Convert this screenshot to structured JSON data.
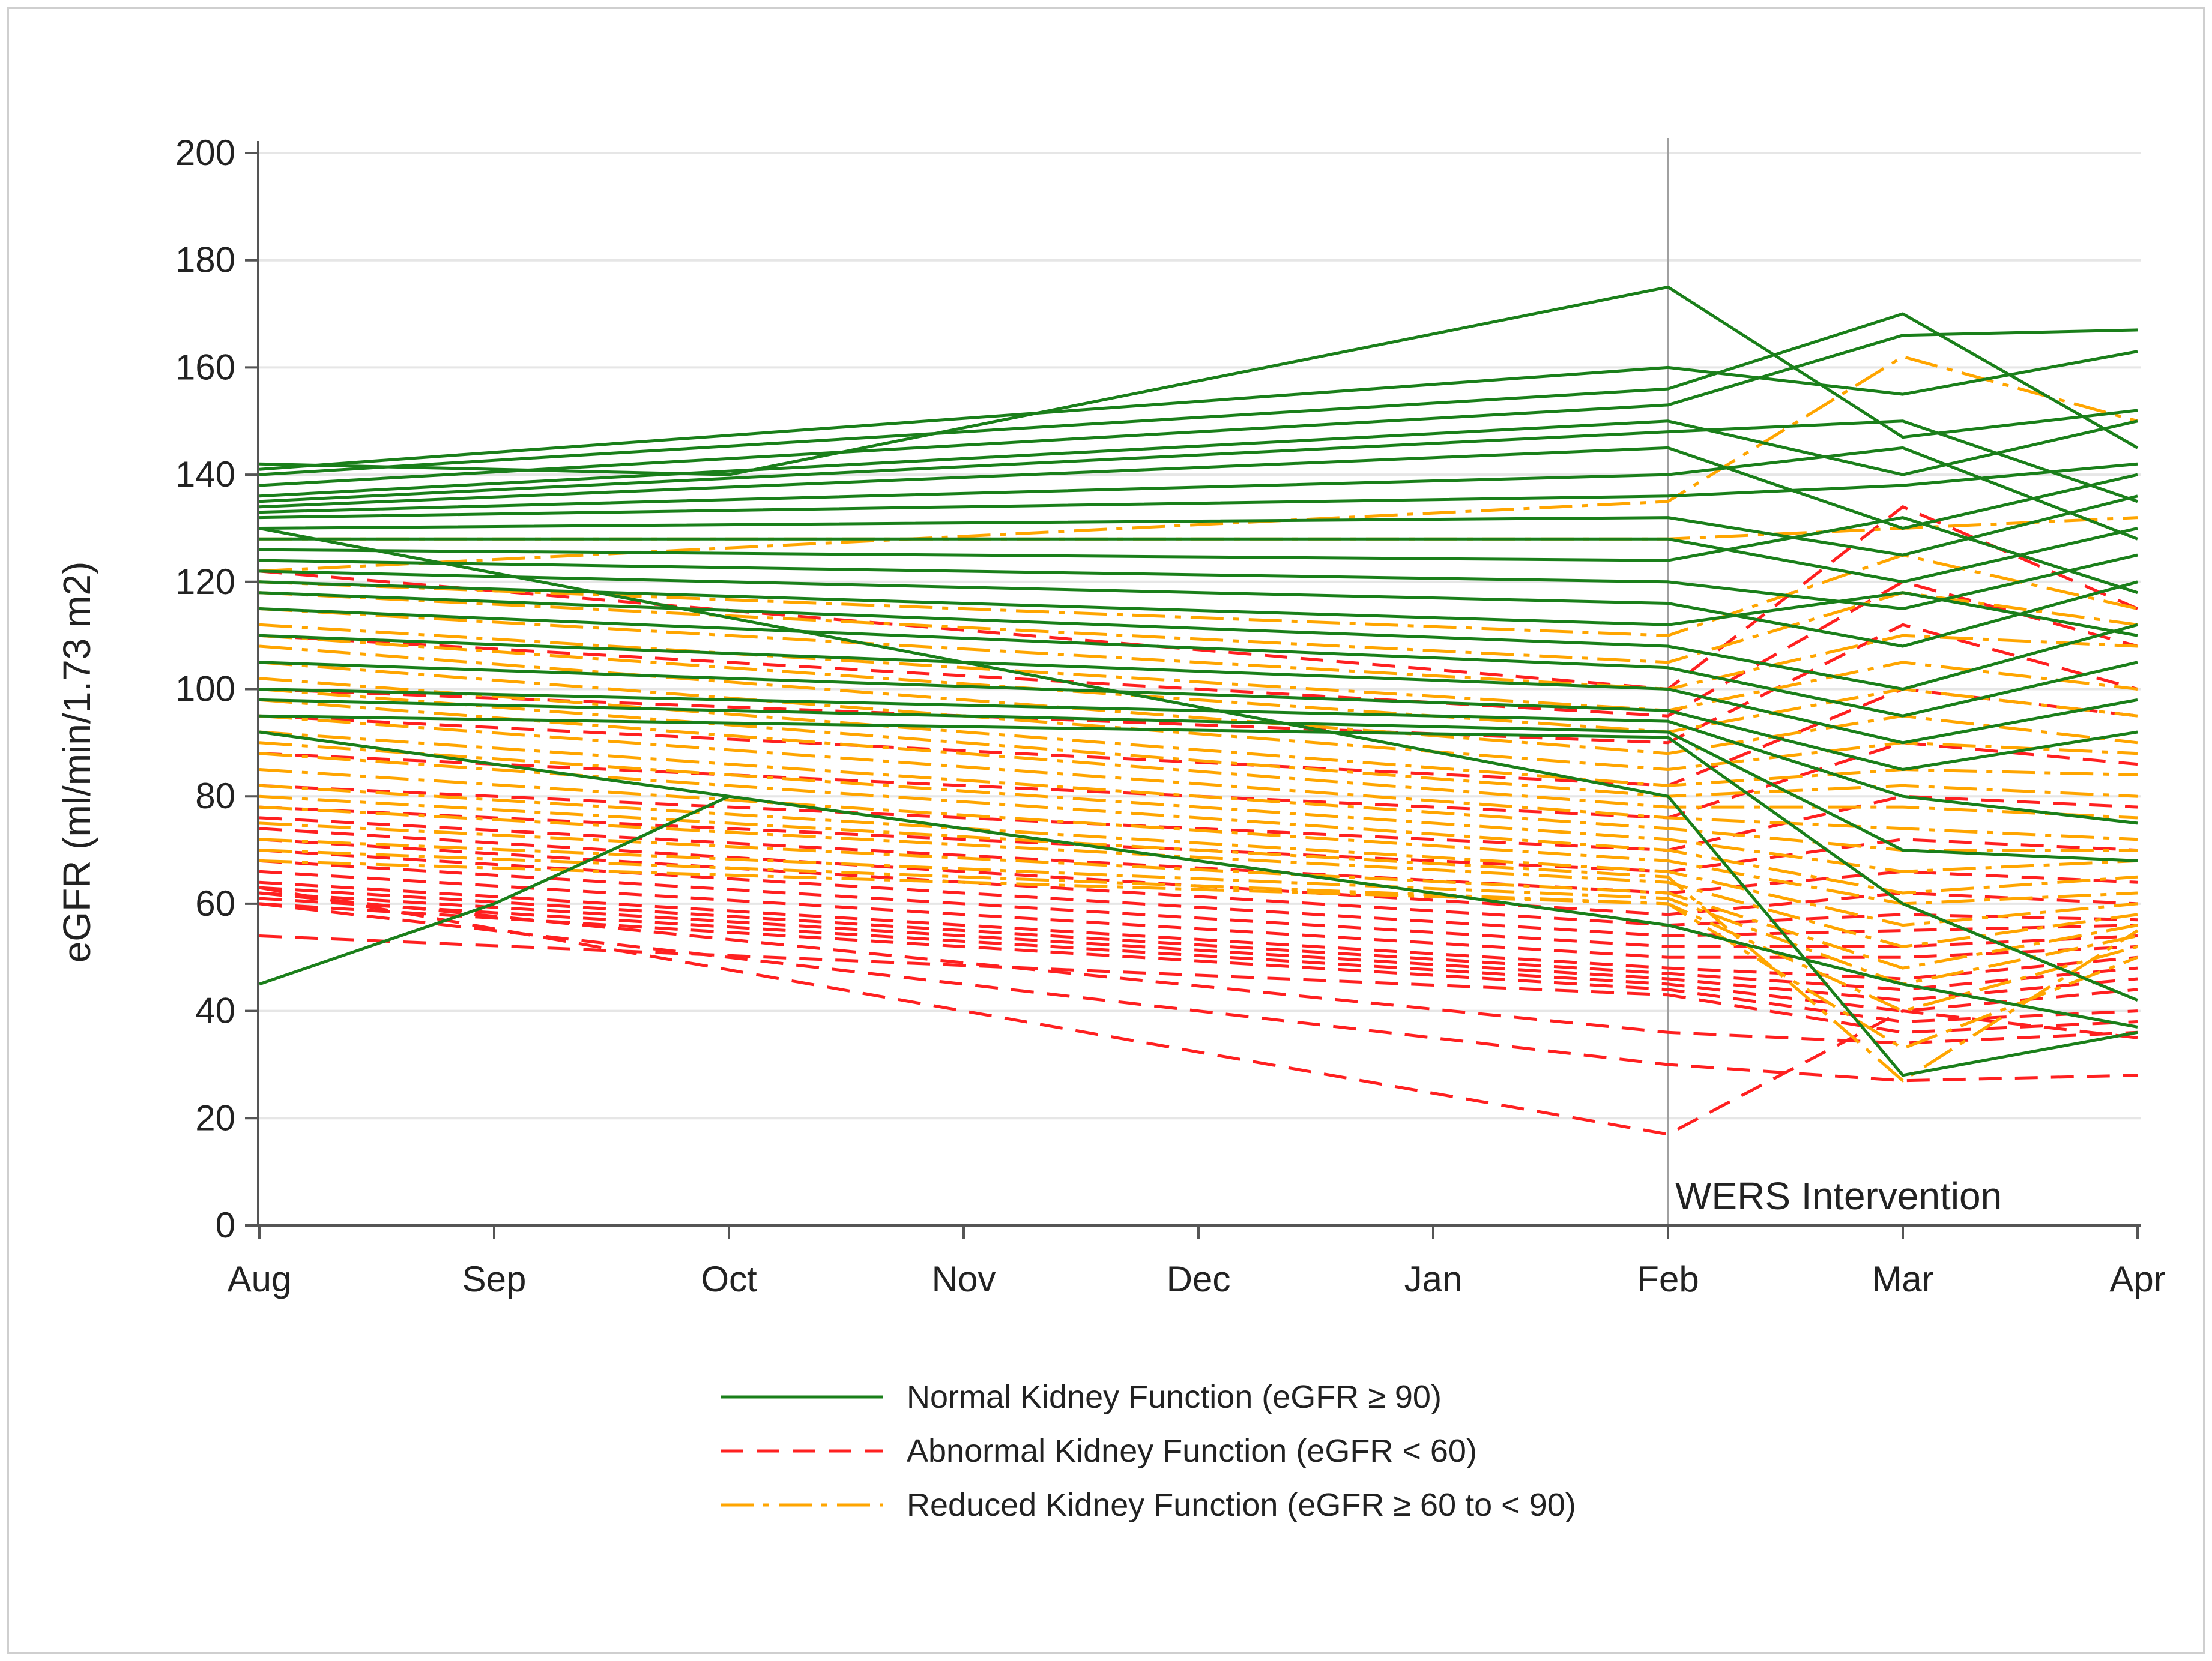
{
  "chart_data": {
    "type": "line",
    "title": "",
    "xlabel": "",
    "ylabel": "eGFR (ml/min/1.73 m2)",
    "categories": [
      "Aug",
      "Sep",
      "Oct",
      "Nov",
      "Dec",
      "Jan",
      "Feb",
      "Mar",
      "Apr"
    ],
    "yticks": [
      0,
      20,
      40,
      60,
      80,
      100,
      120,
      140,
      160,
      180,
      200
    ],
    "ylim": [
      0,
      200
    ],
    "grid": true,
    "legend_position": "bottom-center",
    "annotation": {
      "label": "WERS Intervention",
      "x_category": "Feb"
    },
    "colors": {
      "normal": "#1a7f1a",
      "abnormal": "#ff2020",
      "reduced": "#ffa500",
      "annotation_line": "#a0a0a0",
      "grid": "#e6e6e6"
    },
    "legend": [
      {
        "key": "normal",
        "label": "Normal Kidney Function (eGFR ≥ 90)"
      },
      {
        "key": "abnormal",
        "label": "Abnormal Kidney Function (eGFR < 60)"
      },
      {
        "key": "reduced",
        "label": "Reduced Kidney Function (eGFR ≥ 60 to < 90)"
      }
    ],
    "series": [
      {
        "group": "normal",
        "x": [
          "Aug",
          "Oct",
          "Feb",
          "Mar",
          "Apr"
        ],
        "values": [
          142,
          140,
          175,
          147,
          152
        ]
      },
      {
        "group": "normal",
        "x": [
          "Aug",
          "Feb",
          "Mar",
          "Apr"
        ],
        "values": [
          141,
          160,
          155,
          163
        ]
      },
      {
        "group": "normal",
        "x": [
          "Aug",
          "Feb",
          "Mar",
          "Apr"
        ],
        "values": [
          140,
          156,
          170,
          145
        ]
      },
      {
        "group": "normal",
        "x": [
          "Aug",
          "Feb",
          "Mar",
          "Apr"
        ],
        "values": [
          138,
          153,
          166,
          167
        ]
      },
      {
        "group": "normal",
        "x": [
          "Aug",
          "Feb",
          "Mar",
          "Apr"
        ],
        "values": [
          136,
          150,
          140,
          150
        ]
      },
      {
        "group": "normal",
        "x": [
          "Aug",
          "Feb",
          "Mar",
          "Apr"
        ],
        "values": [
          135,
          148,
          150,
          135
        ]
      },
      {
        "group": "normal",
        "x": [
          "Aug",
          "Feb",
          "Mar",
          "Apr"
        ],
        "values": [
          134,
          145,
          130,
          140
        ]
      },
      {
        "group": "normal",
        "x": [
          "Aug",
          "Feb",
          "Mar",
          "Apr"
        ],
        "values": [
          133,
          140,
          145,
          128
        ]
      },
      {
        "group": "normal",
        "x": [
          "Aug",
          "Feb",
          "Mar",
          "Apr"
        ],
        "values": [
          132,
          136,
          138,
          142
        ]
      },
      {
        "group": "normal",
        "x": [
          "Aug",
          "Feb",
          "Mar",
          "Apr"
        ],
        "values": [
          130,
          132,
          125,
          136
        ]
      },
      {
        "group": "normal",
        "x": [
          "Aug",
          "Feb",
          "Mar",
          "Apr"
        ],
        "values": [
          128,
          128,
          120,
          130
        ]
      },
      {
        "group": "normal",
        "x": [
          "Aug",
          "Feb",
          "Mar",
          "Apr"
        ],
        "values": [
          126,
          124,
          132,
          118
        ]
      },
      {
        "group": "normal",
        "x": [
          "Aug",
          "Feb",
          "Mar",
          "Apr"
        ],
        "values": [
          124,
          120,
          115,
          125
        ]
      },
      {
        "group": "normal",
        "x": [
          "Aug",
          "Feb",
          "Mar",
          "Apr"
        ],
        "values": [
          122,
          116,
          108,
          120
        ]
      },
      {
        "group": "normal",
        "x": [
          "Aug",
          "Feb",
          "Mar",
          "Apr"
        ],
        "values": [
          120,
          112,
          118,
          110
        ]
      },
      {
        "group": "normal",
        "x": [
          "Aug",
          "Feb",
          "Mar",
          "Apr"
        ],
        "values": [
          118,
          108,
          100,
          112
        ]
      },
      {
        "group": "normal",
        "x": [
          "Aug",
          "Feb",
          "Mar",
          "Apr"
        ],
        "values": [
          115,
          104,
          95,
          105
        ]
      },
      {
        "group": "normal",
        "x": [
          "Aug",
          "Feb",
          "Mar",
          "Apr"
        ],
        "values": [
          110,
          100,
          90,
          98
        ]
      },
      {
        "group": "normal",
        "x": [
          "Aug",
          "Feb",
          "Mar",
          "Apr"
        ],
        "values": [
          105,
          96,
          85,
          92
        ]
      },
      {
        "group": "normal",
        "x": [
          "Aug",
          "Feb",
          "Mar",
          "Apr"
        ],
        "values": [
          100,
          94,
          80,
          75
        ]
      },
      {
        "group": "normal",
        "x": [
          "Aug",
          "Feb",
          "Mar",
          "Apr"
        ],
        "values": [
          98,
          92,
          70,
          68
        ]
      },
      {
        "group": "normal",
        "x": [
          "Aug",
          "Feb",
          "Mar",
          "Apr"
        ],
        "values": [
          95,
          91,
          60,
          42
        ]
      },
      {
        "group": "normal",
        "x": [
          "Aug",
          "Sep",
          "Oct"
        ],
        "values": [
          45,
          60,
          80
        ]
      },
      {
        "group": "normal",
        "x": [
          "Aug",
          "Feb",
          "Mar",
          "Apr"
        ],
        "values": [
          130,
          80,
          28,
          36
        ]
      },
      {
        "group": "normal",
        "x": [
          "Aug",
          "Feb",
          "Mar",
          "Apr"
        ],
        "values": [
          92,
          56,
          45,
          37
        ]
      },
      {
        "group": "reduced",
        "x": [
          "Aug",
          "Feb",
          "Mar",
          "Apr"
        ],
        "values": [
          128,
          128,
          130,
          132
        ]
      },
      {
        "group": "reduced",
        "x": [
          "Aug",
          "Feb",
          "Mar",
          "Apr"
        ],
        "values": [
          122,
          135,
          162,
          150
        ]
      },
      {
        "group": "reduced",
        "x": [
          "Aug",
          "Feb",
          "Mar",
          "Apr"
        ],
        "values": [
          120,
          110,
          125,
          115
        ]
      },
      {
        "group": "reduced",
        "x": [
          "Aug",
          "Feb",
          "Mar",
          "Apr"
        ],
        "values": [
          118,
          105,
          118,
          112
        ]
      },
      {
        "group": "reduced",
        "x": [
          "Aug",
          "Feb",
          "Mar",
          "Apr"
        ],
        "values": [
          115,
          100,
          110,
          108
        ]
      },
      {
        "group": "reduced",
        "x": [
          "Aug",
          "Feb",
          "Mar",
          "Apr"
        ],
        "values": [
          112,
          96,
          105,
          100
        ]
      },
      {
        "group": "reduced",
        "x": [
          "Aug",
          "Feb",
          "Mar",
          "Apr"
        ],
        "values": [
          110,
          92,
          100,
          95
        ]
      },
      {
        "group": "reduced",
        "x": [
          "Aug",
          "Feb",
          "Mar",
          "Apr"
        ],
        "values": [
          108,
          88,
          95,
          90
        ]
      },
      {
        "group": "reduced",
        "x": [
          "Aug",
          "Feb",
          "Mar",
          "Apr"
        ],
        "values": [
          105,
          85,
          90,
          88
        ]
      },
      {
        "group": "reduced",
        "x": [
          "Aug",
          "Feb",
          "Mar",
          "Apr"
        ],
        "values": [
          102,
          82,
          85,
          84
        ]
      },
      {
        "group": "reduced",
        "x": [
          "Aug",
          "Feb",
          "Mar",
          "Apr"
        ],
        "values": [
          100,
          80,
          82,
          80
        ]
      },
      {
        "group": "reduced",
        "x": [
          "Aug",
          "Feb",
          "Mar",
          "Apr"
        ],
        "values": [
          98,
          78,
          78,
          76
        ]
      },
      {
        "group": "reduced",
        "x": [
          "Aug",
          "Feb",
          "Mar",
          "Apr"
        ],
        "values": [
          95,
          76,
          74,
          72
        ]
      },
      {
        "group": "reduced",
        "x": [
          "Aug",
          "Feb",
          "Mar",
          "Apr"
        ],
        "values": [
          92,
          74,
          70,
          70
        ]
      },
      {
        "group": "reduced",
        "x": [
          "Aug",
          "Feb",
          "Mar",
          "Apr"
        ],
        "values": [
          90,
          72,
          66,
          68
        ]
      },
      {
        "group": "reduced",
        "x": [
          "Aug",
          "Feb",
          "Mar",
          "Apr"
        ],
        "values": [
          88,
          70,
          62,
          65
        ]
      },
      {
        "group": "reduced",
        "x": [
          "Aug",
          "Feb",
          "Mar",
          "Apr"
        ],
        "values": [
          85,
          68,
          60,
          62
        ]
      },
      {
        "group": "reduced",
        "x": [
          "Aug",
          "Feb",
          "Mar",
          "Apr"
        ],
        "values": [
          82,
          66,
          56,
          60
        ]
      },
      {
        "group": "reduced",
        "x": [
          "Aug",
          "Feb",
          "Mar",
          "Apr"
        ],
        "values": [
          78,
          64,
          52,
          58
        ]
      },
      {
        "group": "reduced",
        "x": [
          "Aug",
          "Feb",
          "Mar",
          "Apr"
        ],
        "values": [
          75,
          62,
          48,
          56
        ]
      },
      {
        "group": "reduced",
        "x": [
          "Aug",
          "Feb",
          "Mar",
          "Apr"
        ],
        "values": [
          72,
          61,
          45,
          54
        ]
      },
      {
        "group": "reduced",
        "x": [
          "Aug",
          "Feb",
          "Mar",
          "Apr"
        ],
        "values": [
          70,
          60,
          40,
          52
        ]
      },
      {
        "group": "reduced",
        "x": [
          "Aug",
          "Feb",
          "Mar",
          "Apr"
        ],
        "values": [
          68,
          60,
          33,
          50
        ]
      },
      {
        "group": "reduced",
        "x": [
          "Aug",
          "Feb",
          "Mar",
          "Apr"
        ],
        "values": [
          80,
          65,
          27,
          55
        ]
      },
      {
        "group": "abnormal",
        "x": [
          "Aug",
          "Feb",
          "Mar",
          "Apr"
        ],
        "values": [
          122,
          100,
          134,
          115
        ]
      },
      {
        "group": "abnormal",
        "x": [
          "Aug",
          "Feb",
          "Mar",
          "Apr"
        ],
        "values": [
          110,
          95,
          120,
          108
        ]
      },
      {
        "group": "abnormal",
        "x": [
          "Aug",
          "Feb",
          "Mar",
          "Apr"
        ],
        "values": [
          100,
          90,
          112,
          100
        ]
      },
      {
        "group": "abnormal",
        "x": [
          "Aug",
          "Feb",
          "Mar",
          "Apr"
        ],
        "values": [
          95,
          82,
          100,
          95
        ]
      },
      {
        "group": "abnormal",
        "x": [
          "Aug",
          "Feb",
          "Mar",
          "Apr"
        ],
        "values": [
          88,
          76,
          90,
          86
        ]
      },
      {
        "group": "abnormal",
        "x": [
          "Aug",
          "Feb",
          "Mar",
          "Apr"
        ],
        "values": [
          82,
          70,
          80,
          78
        ]
      },
      {
        "group": "abnormal",
        "x": [
          "Aug",
          "Feb",
          "Mar",
          "Apr"
        ],
        "values": [
          78,
          66,
          72,
          70
        ]
      },
      {
        "group": "abnormal",
        "x": [
          "Aug",
          "Feb",
          "Mar",
          "Apr"
        ],
        "values": [
          76,
          62,
          66,
          64
        ]
      },
      {
        "group": "abnormal",
        "x": [
          "Aug",
          "Feb",
          "Mar",
          "Apr"
        ],
        "values": [
          74,
          58,
          62,
          60
        ]
      },
      {
        "group": "abnormal",
        "x": [
          "Aug",
          "Feb",
          "Mar",
          "Apr"
        ],
        "values": [
          72,
          56,
          58,
          57
        ]
      },
      {
        "group": "abnormal",
        "x": [
          "Aug",
          "Feb",
          "Mar",
          "Apr"
        ],
        "values": [
          70,
          54,
          55,
          56
        ]
      },
      {
        "group": "abnormal",
        "x": [
          "Aug",
          "Feb",
          "Mar",
          "Apr"
        ],
        "values": [
          68,
          52,
          52,
          54
        ]
      },
      {
        "group": "abnormal",
        "x": [
          "Aug",
          "Feb",
          "Mar",
          "Apr"
        ],
        "values": [
          66,
          50,
          50,
          52
        ]
      },
      {
        "group": "abnormal",
        "x": [
          "Aug",
          "Feb",
          "Mar",
          "Apr"
        ],
        "values": [
          64,
          48,
          46,
          50
        ]
      },
      {
        "group": "abnormal",
        "x": [
          "Aug",
          "Feb",
          "Mar",
          "Apr"
        ],
        "values": [
          63,
          47,
          44,
          48
        ]
      },
      {
        "group": "abnormal",
        "x": [
          "Aug",
          "Feb",
          "Mar",
          "Apr"
        ],
        "values": [
          62,
          46,
          42,
          46
        ]
      },
      {
        "group": "abnormal",
        "x": [
          "Aug",
          "Feb",
          "Mar",
          "Apr"
        ],
        "values": [
          61,
          45,
          40,
          44
        ]
      },
      {
        "group": "abnormal",
        "x": [
          "Aug",
          "Feb",
          "Mar",
          "Apr"
        ],
        "values": [
          60,
          44,
          38,
          40
        ]
      },
      {
        "group": "abnormal",
        "x": [
          "Aug",
          "Feb",
          "Mar",
          "Apr"
        ],
        "values": [
          54,
          43,
          36,
          38
        ]
      },
      {
        "group": "abnormal",
        "x": [
          "Aug",
          "Feb",
          "Mar",
          "Apr"
        ],
        "values": [
          62,
          36,
          34,
          36
        ]
      },
      {
        "group": "abnormal",
        "x": [
          "Aug",
          "Feb",
          "Mar",
          "Apr"
        ],
        "values": [
          60,
          30,
          27,
          28
        ]
      },
      {
        "group": "abnormal",
        "x": [
          "Aug",
          "Feb",
          "Mar",
          "Apr"
        ],
        "values": [
          63,
          17,
          40,
          35
        ]
      }
    ]
  }
}
